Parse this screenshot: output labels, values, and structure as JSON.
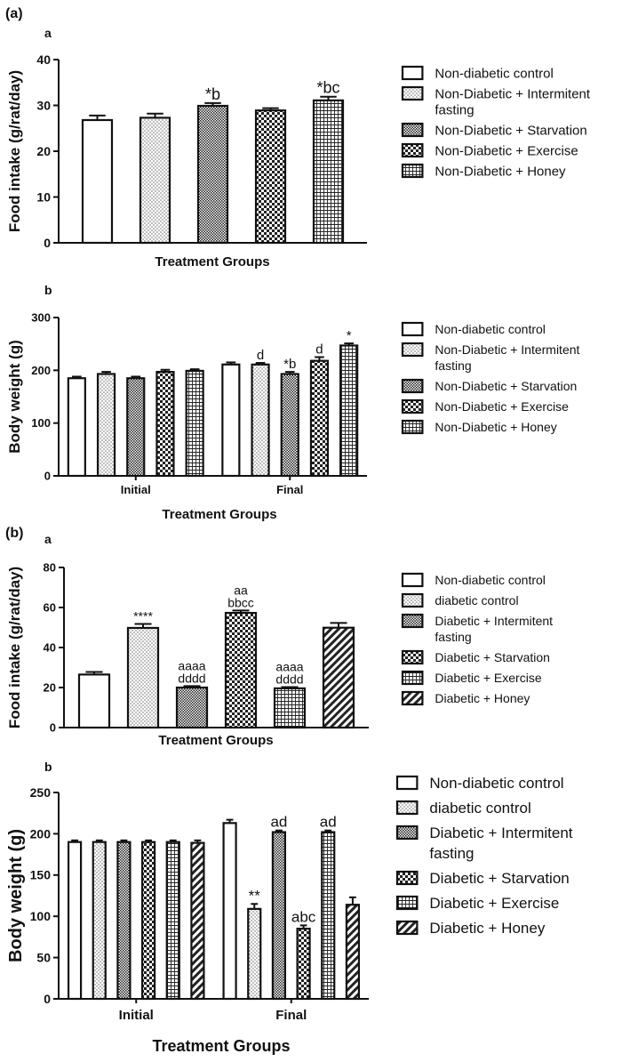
{
  "panels": [
    {
      "label": "(a)"
    },
    {
      "label": "(b)"
    }
  ],
  "chart_data": [
    {
      "type": "bar",
      "sublabel": "a",
      "xlabel": "Treatment Groups",
      "ylabel": "Food intake (g/rat/day)",
      "ylim": [
        0,
        40
      ],
      "yticks": [
        0,
        10,
        20,
        30,
        40
      ],
      "categories": [
        ""
      ],
      "series": [
        {
          "name": "Non-diabetic control",
          "pattern": "none",
          "values": [
            26.8
          ],
          "errors": [
            1.0
          ],
          "annotations": [
            ""
          ]
        },
        {
          "name": "Non-Diabetic + Intermitent fasting",
          "pattern": "dots",
          "values": [
            27.3
          ],
          "errors": [
            0.9
          ],
          "annotations": [
            ""
          ]
        },
        {
          "name": "Non-Diabetic + Starvation",
          "pattern": "fine-check",
          "values": [
            29.9
          ],
          "errors": [
            0.6
          ],
          "annotations": [
            "*b"
          ]
        },
        {
          "name": "Non-Diabetic + Exercise",
          "pattern": "check",
          "values": [
            28.9
          ],
          "errors": [
            0.5
          ],
          "annotations": [
            ""
          ]
        },
        {
          "name": "Non-Diabetic + Honey",
          "pattern": "grid",
          "values": [
            31.1
          ],
          "errors": [
            0.8
          ],
          "annotations": [
            "*bc"
          ]
        }
      ]
    },
    {
      "type": "bar",
      "sublabel": "b",
      "xlabel": "Treatment Groups",
      "ylabel": "Body weight (g)",
      "ylim": [
        0,
        300
      ],
      "yticks": [
        0,
        100,
        200,
        300
      ],
      "categories": [
        "Initial",
        "Final"
      ],
      "series": [
        {
          "name": "Non-diabetic control",
          "pattern": "none",
          "values": [
            185,
            211
          ],
          "errors": [
            3,
            4
          ],
          "annotations": [
            "",
            ""
          ]
        },
        {
          "name": "Non-Diabetic + Intermitent fasting",
          "pattern": "dots",
          "values": [
            193,
            211
          ],
          "errors": [
            4,
            3
          ],
          "annotations": [
            "",
            "d"
          ]
        },
        {
          "name": "Non-Diabetic + Starvation",
          "pattern": "fine-check",
          "values": [
            185,
            193
          ],
          "errors": [
            3,
            4
          ],
          "annotations": [
            "",
            "*b"
          ]
        },
        {
          "name": "Non-Diabetic + Exercise",
          "pattern": "check",
          "values": [
            197,
            218
          ],
          "errors": [
            4,
            7
          ],
          "annotations": [
            "",
            "d"
          ]
        },
        {
          "name": "Non-Diabetic + Honey",
          "pattern": "grid",
          "values": [
            199,
            247
          ],
          "errors": [
            3,
            4
          ],
          "annotations": [
            "",
            "*"
          ]
        }
      ]
    },
    {
      "type": "bar",
      "sublabel": "a",
      "xlabel": "Treatment Groups",
      "ylabel": "Food intake (g/rat/day)",
      "ylim": [
        0,
        80
      ],
      "yticks": [
        0,
        20,
        40,
        60,
        80
      ],
      "categories": [
        ""
      ],
      "series": [
        {
          "name": "Non-diabetic control",
          "pattern": "none",
          "values": [
            26.5
          ],
          "errors": [
            1.3
          ],
          "annotations": [
            ""
          ]
        },
        {
          "name": "diabetic control",
          "pattern": "dots",
          "values": [
            49.8
          ],
          "errors": [
            2.0
          ],
          "annotations": [
            "****"
          ]
        },
        {
          "name": "Diabetic + Intermitent fasting",
          "pattern": "fine-check",
          "values": [
            20.0
          ],
          "errors": [
            0.7
          ],
          "annotations": [
            "aaaa\ndddd"
          ]
        },
        {
          "name": "Diabetic + Starvation",
          "pattern": "check",
          "values": [
            57.3
          ],
          "errors": [
            1.2
          ],
          "annotations": [
            "aa\nbbcc"
          ]
        },
        {
          "name": "Diabetic + Exercise",
          "pattern": "grid",
          "values": [
            19.6
          ],
          "errors": [
            0.6
          ],
          "annotations": [
            "aaaa\ndddd"
          ]
        },
        {
          "name": "Diabetic + Honey",
          "pattern": "diagonal",
          "values": [
            49.9
          ],
          "errors": [
            2.4
          ],
          "annotations": [
            ""
          ]
        }
      ]
    },
    {
      "type": "bar",
      "sublabel": "b",
      "xlabel": "Treatment Groups",
      "ylabel": "Body weight (g)",
      "ylim": [
        0,
        250
      ],
      "yticks": [
        0,
        50,
        100,
        150,
        200,
        250
      ],
      "categories": [
        "Initial",
        "Final"
      ],
      "series": [
        {
          "name": "Non-diabetic control",
          "pattern": "none",
          "values": [
            190,
            213
          ],
          "errors": [
            2,
            4
          ],
          "annotations": [
            "",
            ""
          ]
        },
        {
          "name": "diabetic control",
          "pattern": "dots",
          "values": [
            190,
            109
          ],
          "errors": [
            2,
            6
          ],
          "annotations": [
            "",
            "**"
          ]
        },
        {
          "name": "Diabetic + Intermitent fasting",
          "pattern": "fine-check",
          "values": [
            190,
            202
          ],
          "errors": [
            2,
            2
          ],
          "annotations": [
            "",
            "ad"
          ]
        },
        {
          "name": "Diabetic + Starvation",
          "pattern": "check",
          "values": [
            190,
            85
          ],
          "errors": [
            2,
            4
          ],
          "annotations": [
            "",
            "abc"
          ]
        },
        {
          "name": "Diabetic + Exercise",
          "pattern": "grid",
          "values": [
            190,
            202
          ],
          "errors": [
            2,
            2
          ],
          "annotations": [
            "",
            "ad"
          ]
        },
        {
          "name": "Diabetic + Honey",
          "pattern": "diagonal",
          "values": [
            189,
            114
          ],
          "errors": [
            3,
            9
          ],
          "annotations": [
            "",
            ""
          ]
        }
      ]
    }
  ]
}
